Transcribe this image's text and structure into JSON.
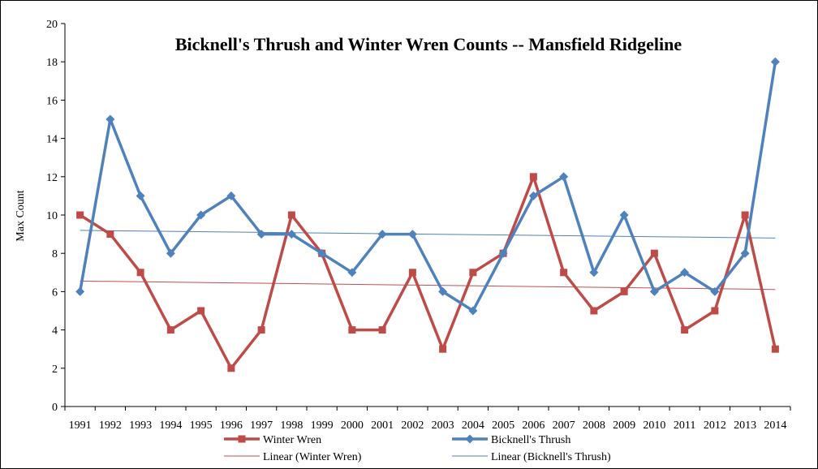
{
  "chart_data": {
    "type": "line",
    "title": "Bicknell's Thrush and Winter Wren Counts -- Mansfield Ridgeline",
    "xlabel": "",
    "ylabel": "Max Count",
    "ylim": [
      0,
      20
    ],
    "yticks": [
      0,
      2,
      4,
      6,
      8,
      10,
      12,
      14,
      16,
      18,
      20
    ],
    "categories": [
      "1991",
      "1992",
      "1993",
      "1994",
      "1995",
      "1996",
      "1997",
      "1998",
      "1999",
      "2000",
      "2001",
      "2002",
      "2003",
      "2004",
      "2005",
      "2006",
      "2007",
      "2008",
      "2009",
      "2010",
      "2011",
      "2012",
      "2013",
      "2014"
    ],
    "grid": false,
    "legend_position": "bottom",
    "series": [
      {
        "name": "Winter Wren",
        "color": "#be4b48",
        "marker": "square",
        "values": [
          10,
          9,
          7,
          4,
          5,
          2,
          4,
          10,
          8,
          4,
          4,
          7,
          3,
          7,
          8,
          12,
          7,
          5,
          6,
          8,
          4,
          5,
          10,
          3
        ]
      },
      {
        "name": "Bicknell's Thrush",
        "color": "#4f81bd",
        "marker": "diamond",
        "values": [
          6,
          15,
          11,
          8,
          10,
          11,
          9,
          9,
          8,
          7,
          9,
          9,
          6,
          5,
          8,
          11,
          12,
          7,
          10,
          6,
          7,
          6,
          8,
          18
        ]
      }
    ],
    "trendlines": [
      {
        "name": "Linear (Winter Wren)",
        "color": "#c0504d",
        "of": "Winter Wren"
      },
      {
        "name": "Linear (Bicknell's Thrush)",
        "color": "#4f81bd",
        "of": "Bicknell's Thrush"
      }
    ]
  }
}
